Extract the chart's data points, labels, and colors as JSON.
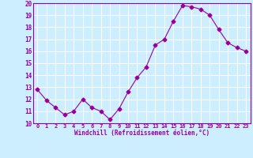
{
  "x": [
    0,
    1,
    2,
    3,
    4,
    5,
    6,
    7,
    8,
    9,
    10,
    11,
    12,
    13,
    14,
    15,
    16,
    17,
    18,
    19,
    20,
    21,
    22,
    23
  ],
  "y": [
    12.8,
    11.9,
    11.3,
    10.7,
    11.0,
    12.0,
    11.3,
    11.0,
    10.3,
    11.2,
    12.6,
    13.8,
    14.7,
    16.5,
    17.0,
    18.5,
    19.8,
    19.7,
    19.5,
    19.0,
    17.8,
    16.7,
    16.3,
    16.0
  ],
  "line_color": "#990099",
  "marker": "D",
  "markersize": 2.5,
  "bg_color": "#cceeff",
  "grid_color": "#ffffff",
  "xlabel": "Windchill (Refroidissement éolien,°C)",
  "tick_color": "#990099",
  "xlim": [
    -0.5,
    23.5
  ],
  "ylim": [
    10,
    20
  ],
  "yticks": [
    10,
    11,
    12,
    13,
    14,
    15,
    16,
    17,
    18,
    19,
    20
  ],
  "xticks": [
    0,
    1,
    2,
    3,
    4,
    5,
    6,
    7,
    8,
    9,
    10,
    11,
    12,
    13,
    14,
    15,
    16,
    17,
    18,
    19,
    20,
    21,
    22,
    23
  ],
  "xtick_labels": [
    "0",
    "1",
    "2",
    "3",
    "4",
    "5",
    "6",
    "7",
    "8",
    "9",
    "10",
    "11",
    "12",
    "13",
    "14",
    "15",
    "16",
    "17",
    "18",
    "19",
    "20",
    "21",
    "22",
    "23"
  ]
}
